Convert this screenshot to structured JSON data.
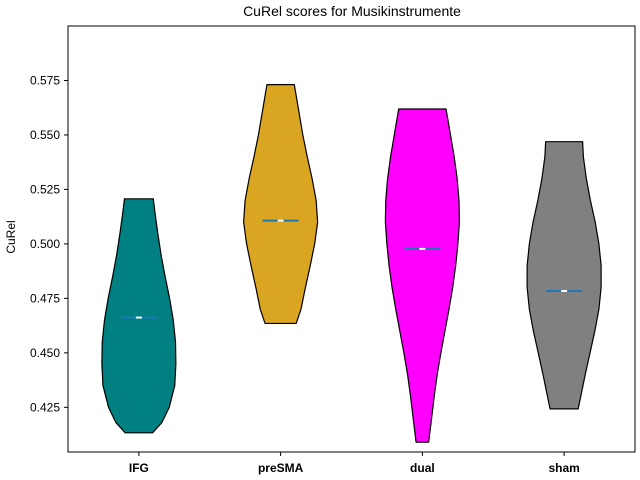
{
  "chart_data": {
    "type": "violin",
    "title": "CuRel scores for Musikinstrumente",
    "xlabel": "",
    "ylabel": "CuRel",
    "ylim": [
      0.4045,
      0.6
    ],
    "yticks": [
      0.425,
      0.45,
      0.475,
      0.5,
      0.525,
      0.55,
      0.575
    ],
    "ytick_labels": [
      "0.425",
      "0.450",
      "0.475",
      "0.500",
      "0.525",
      "0.550",
      "0.575"
    ],
    "categories": [
      "IFG",
      "preSMA",
      "dual",
      "sham"
    ],
    "violins": [
      {
        "category": "IFG",
        "color": "#008080",
        "min": 0.4133,
        "max": 0.5207,
        "median": 0.4662,
        "profile": [
          [
            0.4133,
            0.37
          ],
          [
            0.418,
            0.62
          ],
          [
            0.425,
            0.82
          ],
          [
            0.435,
            0.97
          ],
          [
            0.445,
            1.0
          ],
          [
            0.455,
            0.99
          ],
          [
            0.465,
            0.93
          ],
          [
            0.475,
            0.83
          ],
          [
            0.485,
            0.71
          ],
          [
            0.495,
            0.6
          ],
          [
            0.505,
            0.51
          ],
          [
            0.515,
            0.43
          ],
          [
            0.5207,
            0.39
          ]
        ]
      },
      {
        "category": "preSMA",
        "color": "#DAA520",
        "min": 0.4635,
        "max": 0.5731,
        "median": 0.5107,
        "profile": [
          [
            0.4635,
            0.42
          ],
          [
            0.47,
            0.55
          ],
          [
            0.48,
            0.67
          ],
          [
            0.49,
            0.8
          ],
          [
            0.5,
            0.92
          ],
          [
            0.51,
            1.0
          ],
          [
            0.52,
            0.96
          ],
          [
            0.53,
            0.85
          ],
          [
            0.54,
            0.72
          ],
          [
            0.55,
            0.6
          ],
          [
            0.56,
            0.5
          ],
          [
            0.5731,
            0.37
          ]
        ]
      },
      {
        "category": "dual",
        "color": "#FF00FF",
        "min": 0.409,
        "max": 0.5619,
        "median": 0.4977,
        "profile": [
          [
            0.409,
            0.17
          ],
          [
            0.42,
            0.25
          ],
          [
            0.43,
            0.32
          ],
          [
            0.44,
            0.4
          ],
          [
            0.45,
            0.5
          ],
          [
            0.46,
            0.61
          ],
          [
            0.47,
            0.72
          ],
          [
            0.48,
            0.82
          ],
          [
            0.49,
            0.9
          ],
          [
            0.5,
            0.96
          ],
          [
            0.51,
            1.0
          ],
          [
            0.52,
            0.99
          ],
          [
            0.53,
            0.94
          ],
          [
            0.54,
            0.86
          ],
          [
            0.55,
            0.76
          ],
          [
            0.5619,
            0.64
          ]
        ]
      },
      {
        "category": "sham",
        "color": "#808080",
        "min": 0.4243,
        "max": 0.5469,
        "median": 0.4784,
        "profile": [
          [
            0.4243,
            0.38
          ],
          [
            0.43,
            0.45
          ],
          [
            0.44,
            0.57
          ],
          [
            0.45,
            0.7
          ],
          [
            0.46,
            0.83
          ],
          [
            0.47,
            0.94
          ],
          [
            0.48,
            1.0
          ],
          [
            0.49,
            1.0
          ],
          [
            0.5,
            0.94
          ],
          [
            0.51,
            0.84
          ],
          [
            0.52,
            0.71
          ],
          [
            0.53,
            0.6
          ],
          [
            0.54,
            0.52
          ],
          [
            0.5469,
            0.5
          ]
        ]
      }
    ],
    "median_marker_color": "#1f77b4"
  }
}
